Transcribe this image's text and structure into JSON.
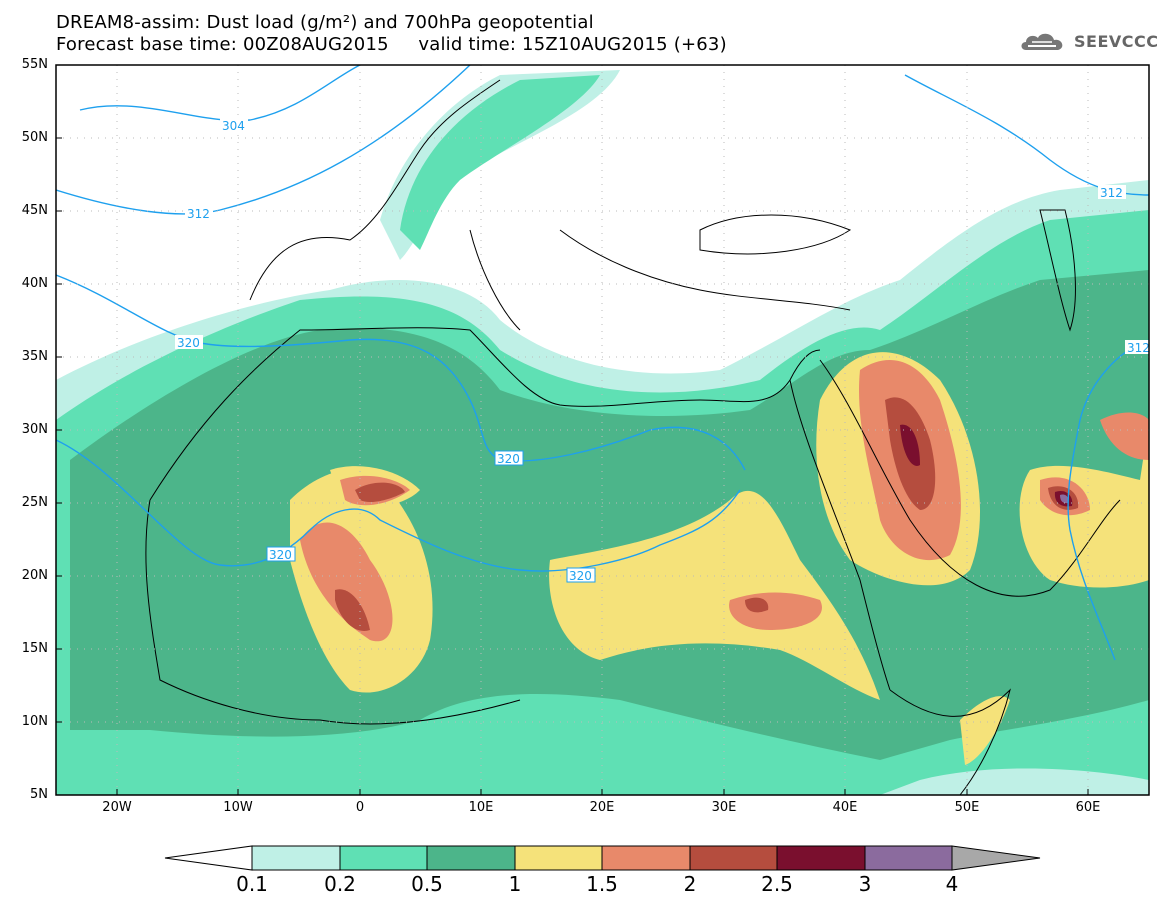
{
  "header": {
    "title_line1": "DREAM8-assim: Dust load (g/m²) and 700hPa geopotential",
    "title_line2": "Forecast base time: 00Z08AUG2015     valid time: 15Z10AUG2015 (+63)",
    "logo_text": "SEEVCCC"
  },
  "map": {
    "lat_labels": [
      "55N",
      "50N",
      "45N",
      "40N",
      "35N",
      "30N",
      "25N",
      "20N",
      "15N",
      "10N",
      "5N"
    ],
    "lon_labels": [
      "20W",
      "10W",
      "0",
      "10E",
      "20E",
      "30E",
      "40E",
      "50E",
      "60E"
    ],
    "contour_labels": [
      "304",
      "312",
      "320",
      "320",
      "320",
      "320",
      "312",
      "312"
    ]
  },
  "legend": {
    "levels": [
      "0.1",
      "0.2",
      "0.5",
      "1",
      "1.5",
      "2",
      "2.5",
      "3",
      "4"
    ],
    "colors": [
      "#bff0e6",
      "#5fe0b4",
      "#4cb58a",
      "#f5e27a",
      "#e8896a",
      "#b54d3e",
      "#7a0f2e",
      "#8b6b9e",
      "#a8a8a8"
    ]
  }
}
